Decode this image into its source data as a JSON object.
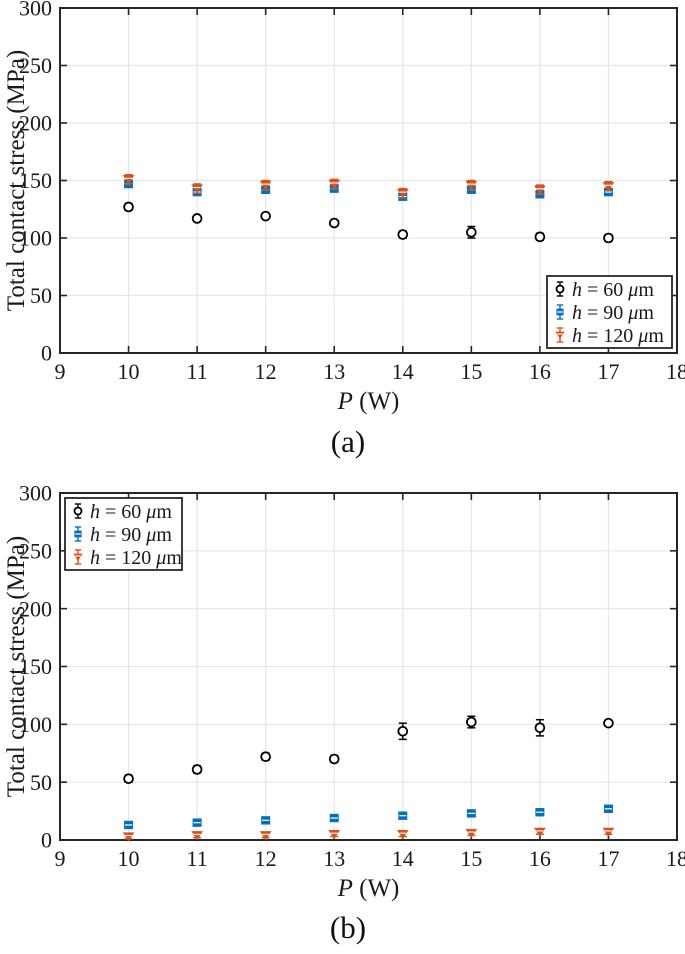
{
  "figure": {
    "background": "#ffffff",
    "axes_color": "#262626",
    "grid_color": "#e6e6e6"
  },
  "chart_data": [
    {
      "id": "a",
      "type": "scatter",
      "caption": "(a)",
      "title": "",
      "xlabel": "P (W)",
      "ylabel": "Total contact stress (MPa)",
      "xlim": [
        9,
        18
      ],
      "ylim": [
        0,
        300
      ],
      "xticks": [
        9,
        10,
        11,
        12,
        13,
        14,
        15,
        16,
        17,
        18
      ],
      "yticks": [
        0,
        50,
        100,
        150,
        200,
        250,
        300
      ],
      "grid": true,
      "legend_position": "bottom-right",
      "x": [
        10,
        11,
        12,
        13,
        14,
        15,
        16,
        17
      ],
      "series": [
        {
          "id": "h60",
          "name": "h = 60 μm",
          "marker": "circle",
          "color": "#000000",
          "marker_fill": "#ffffff",
          "values": [
            127,
            117,
            119,
            113,
            103,
            105,
            101,
            100
          ],
          "errors": [
            3,
            2,
            2,
            2,
            3,
            5,
            3,
            3
          ]
        },
        {
          "id": "h90",
          "name": "h = 90 μm",
          "marker": "square",
          "color": "#0072BD",
          "marker_fill": "#0072BD",
          "values": [
            147,
            140,
            142,
            143,
            136,
            142,
            138,
            140
          ],
          "errors": [
            3,
            3,
            3,
            3,
            3,
            3,
            3,
            3
          ]
        },
        {
          "id": "h120",
          "name": "h = 120 μm",
          "marker": "triangle-down",
          "color": "#D95319",
          "marker_fill": "#D95319",
          "values": [
            151,
            143,
            146,
            147,
            139,
            146,
            142,
            145
          ],
          "errors": [
            4,
            4,
            4,
            4,
            4,
            4,
            4,
            4
          ]
        }
      ]
    },
    {
      "id": "b",
      "type": "scatter",
      "caption": "(b)",
      "title": "",
      "xlabel": "P (W)",
      "ylabel": "Total contact stress (MPa)",
      "xlim": [
        9,
        18
      ],
      "ylim": [
        0,
        300
      ],
      "xticks": [
        9,
        10,
        11,
        12,
        13,
        14,
        15,
        16,
        17,
        18
      ],
      "yticks": [
        0,
        50,
        100,
        150,
        200,
        250,
        300
      ],
      "grid": true,
      "legend_position": "top-left",
      "x": [
        10,
        11,
        12,
        13,
        14,
        15,
        16,
        17
      ],
      "series": [
        {
          "id": "h60",
          "name": "h = 60 μm",
          "marker": "circle",
          "color": "#000000",
          "marker_fill": "#ffffff",
          "values": [
            53,
            61,
            72,
            70,
            94,
            102,
            97,
            101
          ],
          "errors": [
            3,
            3,
            3,
            3,
            7,
            5,
            7,
            2
          ]
        },
        {
          "id": "h90",
          "name": "h = 90 μm",
          "marker": "square",
          "color": "#0072BD",
          "marker_fill": "#0072BD",
          "values": [
            13,
            15,
            17,
            19,
            21,
            23,
            24,
            27
          ],
          "errors": [
            2,
            2,
            2,
            2,
            2,
            2,
            2,
            2
          ]
        },
        {
          "id": "h120",
          "name": "h = 120 μm",
          "marker": "triangle-down",
          "color": "#D95319",
          "marker_fill": "#D95319",
          "values": [
            3,
            4,
            4,
            5,
            5,
            6,
            7,
            7
          ],
          "errors": [
            2,
            2,
            2,
            2,
            2,
            2,
            2,
            2
          ]
        }
      ]
    }
  ]
}
